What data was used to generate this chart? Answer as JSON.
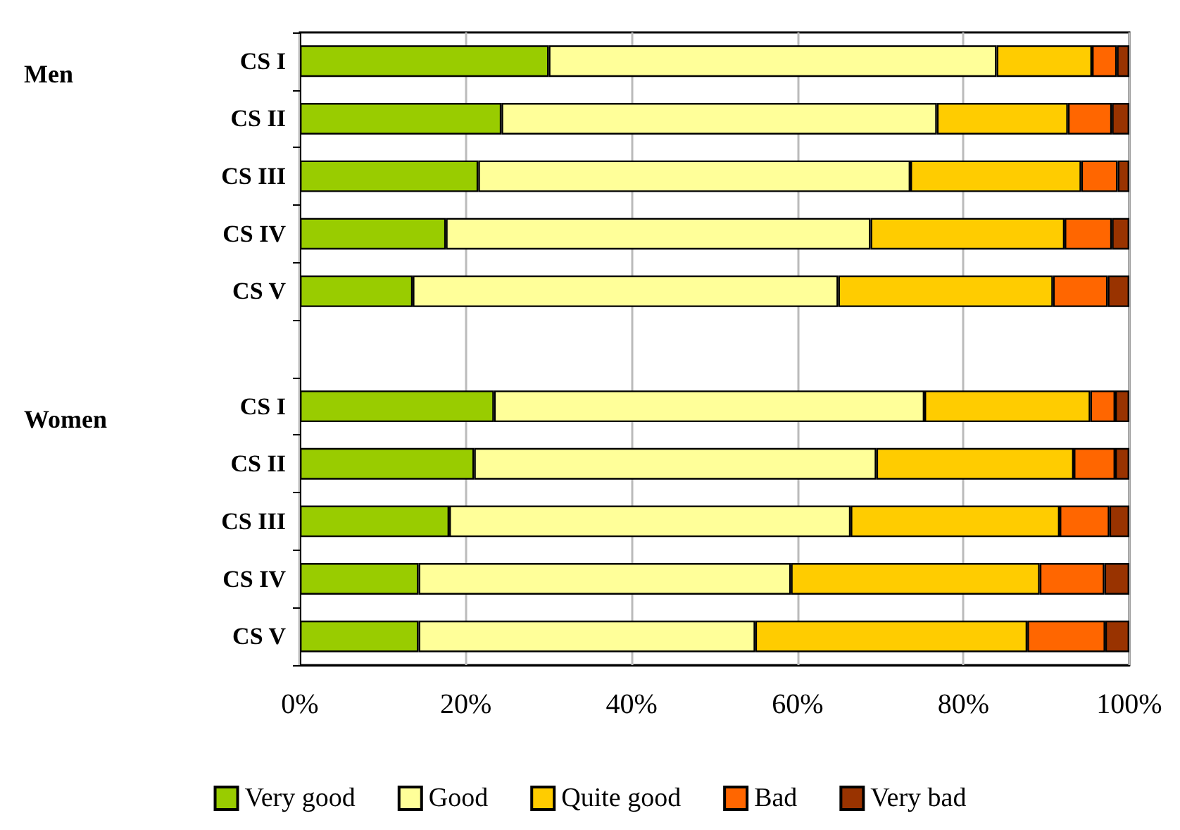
{
  "chart_data": {
    "type": "bar",
    "orientation": "horizontal",
    "stacked": true,
    "categories": [
      "CS I",
      "CS II",
      "CS III",
      "CS IV",
      "CS V",
      null,
      "CS I",
      "CS II",
      "CS III",
      "CS IV",
      "CS V"
    ],
    "series": [
      {
        "name": "Very good",
        "color": "#99cc00",
        "values": [
          30,
          24.3,
          21.5,
          17.6,
          13.6,
          null,
          23.4,
          21,
          18,
          14.3,
          14.3
        ]
      },
      {
        "name": "Good",
        "color": "#ffff99",
        "values": [
          54,
          52.5,
          52.1,
          51.2,
          51.3,
          null,
          51.9,
          48.5,
          48.4,
          44.9,
          40.6
        ]
      },
      {
        "name": "Quite good",
        "color": "#ffcc00",
        "values": [
          11.5,
          15.8,
          20.6,
          23.4,
          25.9,
          null,
          20,
          23.8,
          25.2,
          30,
          32.8
        ]
      },
      {
        "name": "Bad",
        "color": "#ff6600",
        "values": [
          3,
          5.3,
          4.4,
          5.7,
          6.6,
          null,
          3,
          5,
          6,
          7.8,
          9.4
        ]
      },
      {
        "name": "Very bad",
        "color": "#993300",
        "values": [
          1.5,
          2.1,
          1.4,
          2.1,
          2.6,
          null,
          1.7,
          1.7,
          2.4,
          3,
          2.9
        ]
      }
    ],
    "xlim": [
      0,
      100
    ],
    "xticks": [
      {
        "value": 0,
        "label": "0%"
      },
      {
        "value": 20,
        "label": "20%"
      },
      {
        "value": 40,
        "label": "40%"
      },
      {
        "value": 60,
        "label": "60%"
      },
      {
        "value": 80,
        "label": "80%"
      },
      {
        "value": 100,
        "label": "100%"
      }
    ],
    "grid": "x",
    "legend": "bottom",
    "annotations": [
      "Men",
      "Women"
    ]
  }
}
